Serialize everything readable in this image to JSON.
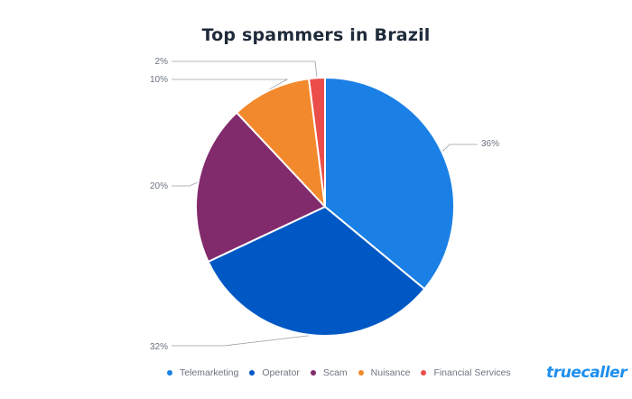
{
  "chart_data": {
    "type": "pie",
    "title": "Top spammers in Brazil",
    "labels": [
      "Telemarketing",
      "Operator",
      "Scam",
      "Nuisance",
      "Financial Services"
    ],
    "values": [
      36,
      32,
      20,
      10,
      2
    ],
    "value_labels": [
      "36%",
      "32%",
      "20%",
      "10%",
      "2%"
    ],
    "colors": [
      "#1a80e6",
      "#0058c4",
      "#812a6c",
      "#f3892d",
      "#ea4d4a"
    ],
    "legend_position": "bottom"
  },
  "brand": {
    "logo_text": "truecaller"
  }
}
